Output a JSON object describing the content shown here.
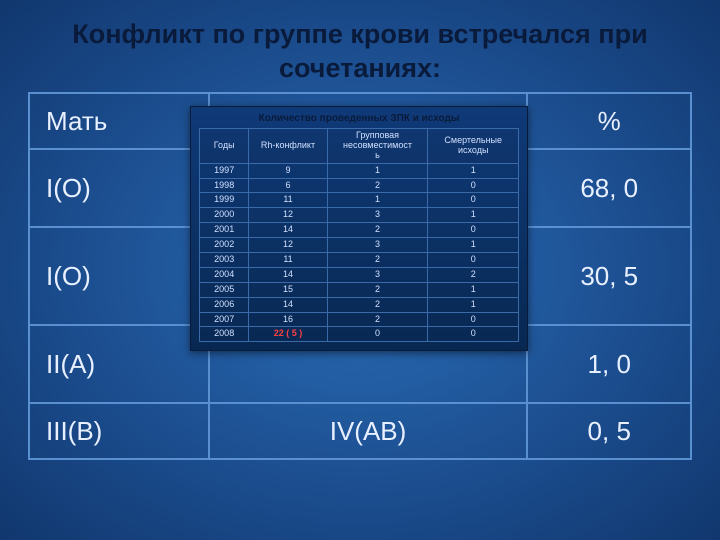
{
  "title_fontsize": 27,
  "title": "Конфликт по группе крови встречался при сочетаниях:",
  "main_fontsize": 26,
  "main": {
    "header_left": "Мать",
    "header_right": "%",
    "rows": [
      {
        "left": "I(O)",
        "mid": "",
        "right": "68, 0"
      },
      {
        "left": "I(O)",
        "mid": "",
        "right": "30, 5"
      },
      {
        "left": "II(A)",
        "mid": "",
        "right": "1, 0"
      },
      {
        "left": "III(B)",
        "mid": "IV(AB)",
        "right": "0, 5"
      }
    ]
  },
  "inner": {
    "title": "Количество проведенных ЗПК и исходы",
    "columns": [
      "Годы",
      "Rh-конфликт",
      "Групповая\nнесовместимост\nь",
      "Смертельные\nисходы"
    ],
    "rows": [
      [
        "1997",
        "9",
        "1",
        "1"
      ],
      [
        "1998",
        "6",
        "2",
        "0"
      ],
      [
        "1999",
        "11",
        "1",
        "0"
      ],
      [
        "2000",
        "12",
        "3",
        "1"
      ],
      [
        "2001",
        "14",
        "2",
        "0"
      ],
      [
        "2002",
        "12",
        "3",
        "1"
      ],
      [
        "2003",
        "11",
        "2",
        "0"
      ],
      [
        "2004",
        "14",
        "3",
        "2"
      ],
      [
        "2005",
        "15",
        "2",
        "1"
      ],
      [
        "2006",
        "14",
        "2",
        "1"
      ],
      [
        "2007",
        "16",
        "2",
        "0"
      ],
      [
        "2008",
        "22 ( 5 )",
        "0",
        "0"
      ]
    ],
    "highlight_row": 11,
    "highlight_col": 1
  },
  "colors": {
    "title_text": "#0a1a3a",
    "table_border": "#5a8fd0",
    "table_text": "#e8f0ff",
    "highlight": "#ff4040"
  }
}
